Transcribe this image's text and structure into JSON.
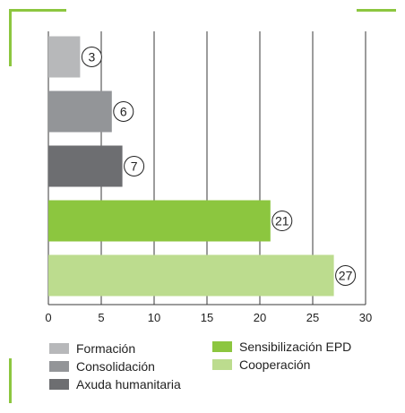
{
  "chart_data": {
    "type": "bar",
    "orientation": "horizontal",
    "categories": [
      "Formación",
      "Consolidación",
      "Axuda humanitaria",
      "Sensibilización EPD",
      "Cooperación"
    ],
    "values": [
      3,
      6,
      7,
      21,
      27
    ],
    "colors": [
      "#b7b8ba",
      "#939598",
      "#6d6e71",
      "#8cc63f",
      "#bcdc8e"
    ],
    "xlim": [
      0,
      30
    ],
    "xticks": [
      "0",
      "5",
      "10",
      "15",
      "20",
      "25",
      "30"
    ],
    "data_labels": [
      "3",
      "6",
      "7",
      "21",
      "27"
    ],
    "grid": true,
    "legend_position": "bottom"
  },
  "legend": {
    "items": [
      {
        "label": "Formación",
        "color": "#b7b8ba"
      },
      {
        "label": "Consolidación",
        "color": "#939598"
      },
      {
        "label": "Axuda humanitaria",
        "color": "#6d6e71"
      },
      {
        "label": "Sensibilización EPD",
        "color": "#8cc63f"
      },
      {
        "label": "Cooperación",
        "color": "#bcdc8e"
      }
    ]
  }
}
